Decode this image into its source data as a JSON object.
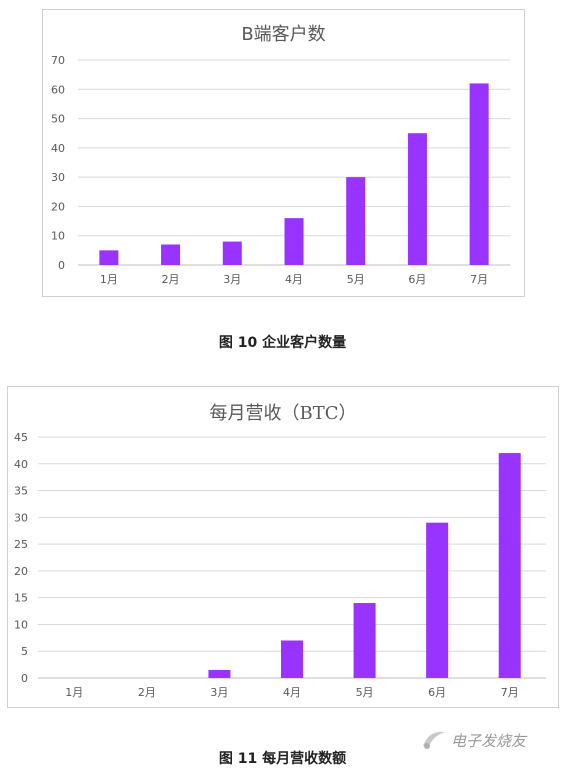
{
  "chart_data": [
    {
      "type": "bar",
      "title": "B端客户数",
      "categories": [
        "1月",
        "2月",
        "3月",
        "4月",
        "5月",
        "6月",
        "7月"
      ],
      "values": [
        5,
        7,
        8,
        16,
        30,
        45,
        62
      ],
      "ylim": [
        0,
        70
      ],
      "yticks": [
        0,
        10,
        20,
        30,
        40,
        50,
        60,
        70
      ],
      "grid": true,
      "color": "#9933ff"
    },
    {
      "type": "bar",
      "title": "每月营收（BTC）",
      "categories": [
        "1月",
        "2月",
        "3月",
        "4月",
        "5月",
        "6月",
        "7月"
      ],
      "values": [
        0,
        0,
        1.5,
        7,
        14,
        29,
        42
      ],
      "ylim": [
        0,
        45
      ],
      "yticks": [
        0,
        5,
        10,
        15,
        20,
        25,
        30,
        35,
        40,
        45
      ],
      "grid": true,
      "color": "#9933ff"
    }
  ],
  "captions": {
    "fig10": "图 10  企业客户数量",
    "fig11": "图 11  每月营收数额"
  },
  "watermark": {
    "text": "电子发烧友",
    "icon": "watermark-logo-icon"
  }
}
